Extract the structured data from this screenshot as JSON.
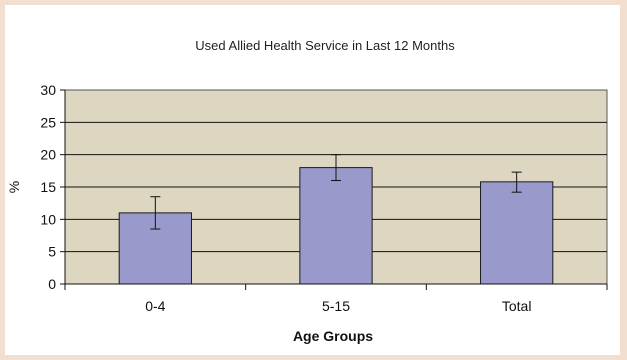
{
  "chart_data": {
    "type": "bar",
    "title": "Used Allied Health Service in Last 12 Months",
    "xlabel": "Age Groups",
    "ylabel": "%",
    "categories": [
      "0-4",
      "5-15",
      "Total"
    ],
    "values": [
      11.0,
      18.0,
      15.8
    ],
    "error_bars": [
      {
        "low": 8.5,
        "high": 13.5
      },
      {
        "low": 16.0,
        "high": 20.0
      },
      {
        "low": 14.2,
        "high": 17.3
      }
    ],
    "ylim": [
      0,
      30
    ],
    "yticks": [
      "0",
      "5",
      "10",
      "15",
      "20",
      "25",
      "30"
    ],
    "grid": true,
    "colors": {
      "bar": "#9999cc",
      "bar_edge": "#1a1a1a",
      "plot_background": "#ddd6c0",
      "page_border": "#f2dfd0"
    }
  }
}
